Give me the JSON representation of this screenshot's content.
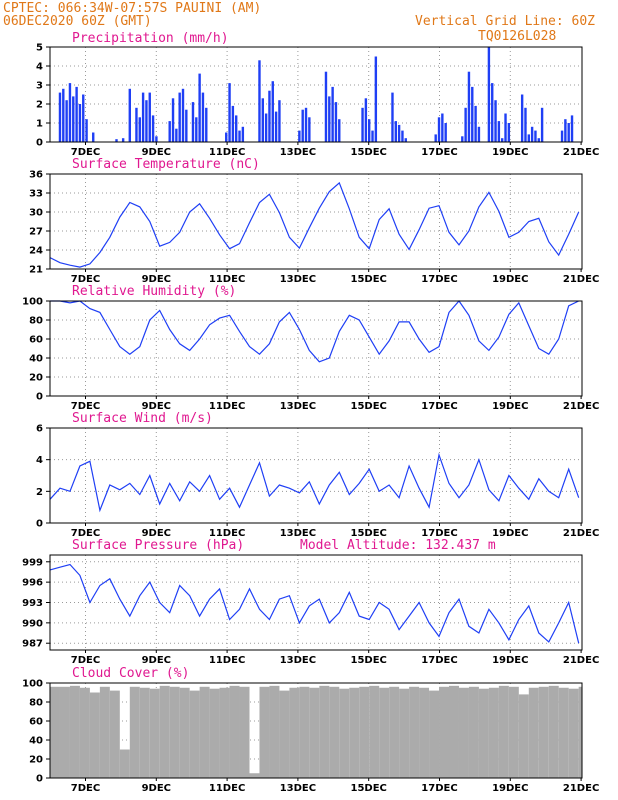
{
  "header": {
    "line1": "CPTEC:   066:34W-07:57S   PAUINI (AM)",
    "line2": "06DEC2020 60Z (GMT)",
    "grid_note": "Vertical Grid Line: 60Z",
    "model": "TQ0126L028"
  },
  "x_ticks": [
    "7DEC",
    "9DEC",
    "11DEC",
    "13DEC",
    "15DEC",
    "17DEC",
    "19DEC",
    "21DEC"
  ],
  "chart_data": [
    {
      "type": "bar",
      "title": "Precipitation (mm/h)",
      "color": "#1f3ff5",
      "ylim": [
        0,
        5
      ],
      "yticks": [
        0,
        1,
        2,
        3,
        4,
        5
      ],
      "x": [
        0.3,
        0.4,
        0.5,
        0.6,
        0.7,
        0.8,
        0.9,
        1.0,
        1.1,
        1.3,
        2.0,
        2.2,
        2.4,
        2.6,
        2.7,
        2.8,
        2.9,
        3.0,
        3.1,
        3.2,
        3.6,
        3.7,
        3.8,
        3.9,
        4.0,
        4.1,
        4.3,
        4.4,
        4.5,
        4.6,
        4.7,
        5.3,
        5.4,
        5.5,
        5.6,
        5.7,
        5.8,
        6.3,
        6.4,
        6.5,
        6.6,
        6.7,
        6.8,
        6.9,
        7.5,
        7.6,
        7.7,
        7.8,
        8.3,
        8.4,
        8.5,
        8.6,
        8.7,
        9.4,
        9.5,
        9.6,
        9.7,
        9.8,
        10.3,
        10.4,
        10.5,
        10.6,
        10.7,
        11.6,
        11.7,
        11.8,
        11.9,
        12.4,
        12.5,
        12.6,
        12.7,
        12.8,
        12.9,
        13.2,
        13.3,
        13.4,
        13.5,
        13.6,
        13.7,
        13.8,
        14.2,
        14.3,
        14.4,
        14.5,
        14.6,
        14.7,
        14.8,
        15.4,
        15.5,
        15.6,
        15.7
      ],
      "values": [
        2.6,
        2.8,
        2.2,
        3.1,
        2.4,
        2.9,
        2.0,
        2.5,
        1.2,
        0.5,
        0.15,
        0.2,
        2.8,
        1.8,
        1.3,
        2.6,
        2.2,
        2.6,
        1.4,
        0.3,
        1.1,
        2.3,
        0.7,
        2.6,
        2.8,
        1.7,
        2.1,
        1.3,
        3.6,
        2.6,
        1.8,
        0.5,
        3.1,
        1.9,
        1.4,
        0.6,
        0.8,
        4.3,
        2.3,
        1.5,
        2.7,
        3.2,
        1.6,
        2.2,
        0.6,
        1.7,
        1.8,
        1.3,
        3.7,
        2.4,
        2.9,
        2.1,
        1.2,
        1.8,
        2.3,
        1.2,
        0.6,
        4.5,
        2.6,
        1.1,
        0.9,
        0.6,
        0.2,
        0.4,
        1.3,
        1.5,
        1.0,
        0.3,
        1.8,
        3.7,
        2.9,
        1.9,
        0.8,
        5.0,
        3.1,
        2.2,
        1.1,
        0.2,
        1.5,
        1.0,
        2.5,
        1.8,
        0.4,
        0.8,
        0.6,
        0.2,
        1.8,
        0.6,
        1.2,
        1.0,
        1.4
      ]
    },
    {
      "type": "line",
      "title": "Surface Temperature (nC)",
      "color": "#1f3ff5",
      "ylim": [
        21,
        36
      ],
      "yticks": [
        21,
        24,
        27,
        30,
        33,
        36
      ],
      "x": [
        0.0,
        0.3,
        0.6,
        0.9,
        1.2,
        1.5,
        1.8,
        2.1,
        2.4,
        2.7,
        3.0,
        3.3,
        3.6,
        3.9,
        4.2,
        4.5,
        4.8,
        5.1,
        5.4,
        5.7,
        6.0,
        6.3,
        6.6,
        6.9,
        7.2,
        7.5,
        7.8,
        8.1,
        8.4,
        8.7,
        9.0,
        9.3,
        9.6,
        9.9,
        10.2,
        10.5,
        10.8,
        11.1,
        11.4,
        11.7,
        12.0,
        12.3,
        12.6,
        12.9,
        13.2,
        13.5,
        13.8,
        14.1,
        14.4,
        14.7,
        15.0,
        15.3,
        15.6,
        15.9
      ],
      "values": [
        22.8,
        22.0,
        21.6,
        21.3,
        21.8,
        23.6,
        26.0,
        29.2,
        31.5,
        30.8,
        28.5,
        24.6,
        25.2,
        26.8,
        30.0,
        31.3,
        29.0,
        26.4,
        24.2,
        25.0,
        28.3,
        31.5,
        32.8,
        29.9,
        26.0,
        24.3,
        27.5,
        30.6,
        33.2,
        34.6,
        30.5,
        26.0,
        24.2,
        28.8,
        30.5,
        26.5,
        24.1,
        27.2,
        30.6,
        31.0,
        26.8,
        24.8,
        27.0,
        30.8,
        33.1,
        30.1,
        26.0,
        26.8,
        28.5,
        29.0,
        25.3,
        23.2,
        26.5,
        30.0
      ]
    },
    {
      "type": "line",
      "title": "Relative Humidity (%)",
      "color": "#1f3ff5",
      "ylim": [
        0,
        100
      ],
      "yticks": [
        0,
        20,
        40,
        60,
        80,
        100
      ],
      "x": [
        0.0,
        0.3,
        0.6,
        0.9,
        1.2,
        1.5,
        1.8,
        2.1,
        2.4,
        2.7,
        3.0,
        3.3,
        3.6,
        3.9,
        4.2,
        4.5,
        4.8,
        5.1,
        5.4,
        5.7,
        6.0,
        6.3,
        6.6,
        6.9,
        7.2,
        7.5,
        7.8,
        8.1,
        8.4,
        8.7,
        9.0,
        9.3,
        9.6,
        9.9,
        10.2,
        10.5,
        10.8,
        11.1,
        11.4,
        11.7,
        12.0,
        12.3,
        12.6,
        12.9,
        13.2,
        13.5,
        13.8,
        14.1,
        14.4,
        14.7,
        15.0,
        15.3,
        15.6,
        15.9
      ],
      "values": [
        100,
        100,
        98,
        100,
        92,
        88,
        70,
        52,
        44,
        52,
        80,
        90,
        70,
        55,
        48,
        60,
        75,
        82,
        85,
        68,
        52,
        44,
        55,
        78,
        88,
        70,
        48,
        36,
        40,
        68,
        85,
        80,
        62,
        44,
        58,
        78,
        78,
        60,
        46,
        52,
        88,
        100,
        85,
        58,
        48,
        62,
        86,
        98,
        74,
        50,
        44,
        60,
        95,
        100
      ]
    },
    {
      "type": "line",
      "title": "Surface Wind (m/s)",
      "color": "#1f3ff5",
      "ylim": [
        0,
        6
      ],
      "yticks": [
        0,
        2,
        4,
        6
      ],
      "x": [
        0.0,
        0.3,
        0.6,
        0.9,
        1.2,
        1.5,
        1.8,
        2.1,
        2.4,
        2.7,
        3.0,
        3.3,
        3.6,
        3.9,
        4.2,
        4.5,
        4.8,
        5.1,
        5.4,
        5.7,
        6.0,
        6.3,
        6.6,
        6.9,
        7.2,
        7.5,
        7.8,
        8.1,
        8.4,
        8.7,
        9.0,
        9.3,
        9.6,
        9.9,
        10.2,
        10.5,
        10.8,
        11.1,
        11.4,
        11.7,
        12.0,
        12.3,
        12.6,
        12.9,
        13.2,
        13.5,
        13.8,
        14.1,
        14.4,
        14.7,
        15.0,
        15.3,
        15.6,
        15.9
      ],
      "values": [
        1.5,
        2.2,
        2.0,
        3.6,
        3.9,
        0.8,
        2.4,
        2.1,
        2.5,
        1.8,
        3.0,
        1.2,
        2.5,
        1.4,
        2.6,
        2.0,
        3.0,
        1.5,
        2.2,
        1.0,
        2.4,
        3.8,
        1.7,
        2.4,
        2.2,
        1.9,
        2.6,
        1.2,
        2.4,
        3.2,
        1.8,
        2.5,
        3.4,
        2.0,
        2.4,
        1.6,
        3.6,
        2.2,
        1.0,
        4.3,
        2.5,
        1.6,
        2.4,
        4.0,
        2.1,
        1.4,
        3.0,
        2.2,
        1.5,
        2.8,
        2.0,
        1.6,
        3.4,
        1.6
      ]
    },
    {
      "type": "line",
      "title": "Surface Pressure (hPa)",
      "subtitle": "Model Altitude: 132.437 m",
      "color": "#1f3ff5",
      "ylim": [
        986,
        1000
      ],
      "yticks": [
        987,
        990,
        993,
        996,
        999
      ],
      "x": [
        0.0,
        0.3,
        0.6,
        0.9,
        1.2,
        1.5,
        1.8,
        2.1,
        2.4,
        2.7,
        3.0,
        3.3,
        3.6,
        3.9,
        4.2,
        4.5,
        4.8,
        5.1,
        5.4,
        5.7,
        6.0,
        6.3,
        6.6,
        6.9,
        7.2,
        7.5,
        7.8,
        8.1,
        8.4,
        8.7,
        9.0,
        9.3,
        9.6,
        9.9,
        10.2,
        10.5,
        10.8,
        11.1,
        11.4,
        11.7,
        12.0,
        12.3,
        12.6,
        12.9,
        13.2,
        13.5,
        13.8,
        14.1,
        14.4,
        14.7,
        15.0,
        15.3,
        15.6,
        15.9
      ],
      "values": [
        997.8,
        998.2,
        998.6,
        997.0,
        993.0,
        995.5,
        996.5,
        993.5,
        991.0,
        994.0,
        996.0,
        993.0,
        991.5,
        995.5,
        994.0,
        991.0,
        993.5,
        995.0,
        990.5,
        992.0,
        995.0,
        992.0,
        990.5,
        993.5,
        994.0,
        990.0,
        992.5,
        993.5,
        990.0,
        991.5,
        994.5,
        991.0,
        990.5,
        993.0,
        992.0,
        989.0,
        991.0,
        993.0,
        990.0,
        988.0,
        991.5,
        993.5,
        989.5,
        988.5,
        992.0,
        990.0,
        987.5,
        990.5,
        992.5,
        988.5,
        987.2,
        990.0,
        993.0,
        987.0
      ]
    },
    {
      "type": "area",
      "title": "Cloud Cover (%)",
      "color": "#ababab",
      "ylim": [
        0,
        100
      ],
      "yticks": [
        0,
        20,
        40,
        60,
        80,
        100
      ],
      "x": [
        0.0,
        0.3,
        0.6,
        0.9,
        1.2,
        1.5,
        1.8,
        2.1,
        2.4,
        2.7,
        3.0,
        3.3,
        3.6,
        3.9,
        4.2,
        4.5,
        4.8,
        5.1,
        5.4,
        5.7,
        6.0,
        6.3,
        6.6,
        6.9,
        7.2,
        7.5,
        7.8,
        8.1,
        8.4,
        8.7,
        9.0,
        9.3,
        9.6,
        9.9,
        10.2,
        10.5,
        10.8,
        11.1,
        11.4,
        11.7,
        12.0,
        12.3,
        12.6,
        12.9,
        13.2,
        13.5,
        13.8,
        14.1,
        14.4,
        14.7,
        15.0,
        15.3,
        15.6,
        15.9
      ],
      "values": [
        96,
        96,
        97,
        95,
        90,
        96,
        92,
        30,
        96,
        95,
        94,
        97,
        96,
        95,
        92,
        96,
        94,
        95,
        97,
        96,
        5,
        96,
        97,
        92,
        95,
        96,
        95,
        97,
        96,
        94,
        95,
        96,
        97,
        95,
        96,
        94,
        96,
        95,
        92,
        96,
        97,
        95,
        96,
        94,
        95,
        97,
        96,
        88,
        95,
        96,
        97,
        95,
        94,
        96
      ]
    }
  ]
}
